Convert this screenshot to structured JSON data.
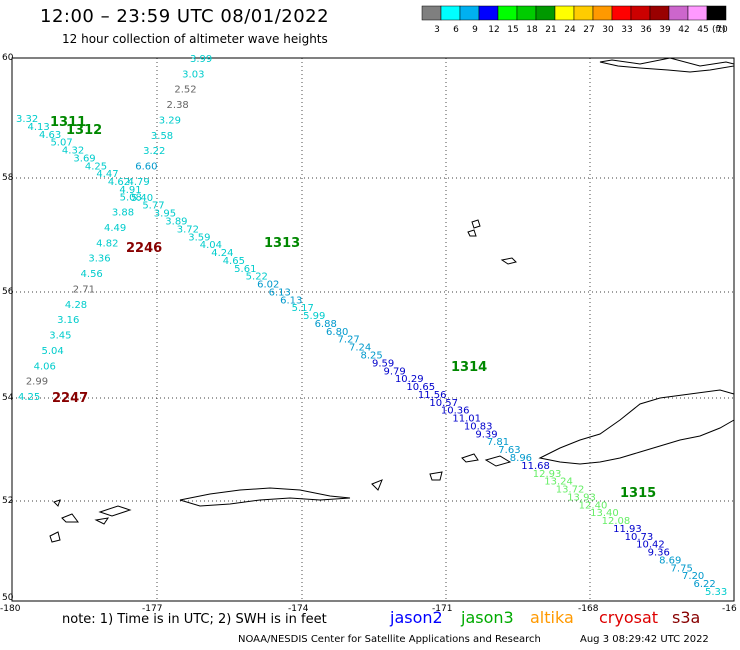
{
  "header": {
    "title": "12:00 – 23:59 UTC 08/01/2022",
    "subtitle": "12 hour collection of altimeter wave heights"
  },
  "colorbar": {
    "labels": [
      "3",
      "6",
      "9",
      "12",
      "15",
      "18",
      "21",
      "24",
      "27",
      "30",
      "33",
      "36",
      "39",
      "42",
      "45",
      "70"
    ],
    "unit": "(ft)",
    "colors": [
      "#7f7f7f",
      "#00ffff",
      "#00b0f0",
      "#0000ff",
      "#00ff00",
      "#00cc00",
      "#009900",
      "#ffff00",
      "#ffcc00",
      "#ff9900",
      "#ff0000",
      "#cc0000",
      "#990000",
      "#cc66cc",
      "#ff99ff",
      "#000000"
    ]
  },
  "axes": {
    "lon_labels": [
      "-180",
      "-177",
      "-174",
      "-171",
      "-168",
      "-16"
    ],
    "lat_labels": [
      "60",
      "58",
      "56",
      "54",
      "52",
      "50"
    ]
  },
  "tracks": {
    "t1312_label": "1312",
    "t1311_label": "1311",
    "t1313_label": "1313",
    "t1314_label": "1314",
    "t1315_label": "1315",
    "t2246_label": "2246",
    "t2247_label": "2247",
    "nw_se": [
      {
        "v": "3.32",
        "c": "#00cccc"
      },
      {
        "v": "4.13",
        "c": "#00cccc"
      },
      {
        "v": "4.63",
        "c": "#00cccc"
      },
      {
        "v": "5.07",
        "c": "#00cccc"
      },
      {
        "v": "4.32",
        "c": "#00cccc"
      },
      {
        "v": "3.69",
        "c": "#00cccc"
      },
      {
        "v": "4.25",
        "c": "#00cccc"
      },
      {
        "v": "4.47",
        "c": "#00cccc"
      },
      {
        "v": "4.62",
        "c": "#00cccc"
      },
      {
        "v": "4.91",
        "c": "#00cccc"
      },
      {
        "v": "5.40",
        "c": "#00cccc"
      },
      {
        "v": "5.77",
        "c": "#00cccc"
      },
      {
        "v": "3.95",
        "c": "#00cccc"
      },
      {
        "v": "3.89",
        "c": "#00cccc"
      },
      {
        "v": "3.72",
        "c": "#00cccc"
      },
      {
        "v": "3.59",
        "c": "#00cccc"
      },
      {
        "v": "4.04",
        "c": "#00cccc"
      },
      {
        "v": "4.24",
        "c": "#00cccc"
      },
      {
        "v": "4.65",
        "c": "#00cccc"
      },
      {
        "v": "5.61",
        "c": "#00cccc"
      },
      {
        "v": "5.22",
        "c": "#00cccc"
      },
      {
        "v": "6.02",
        "c": "#0099cc"
      },
      {
        "v": "6.13",
        "c": "#0099cc"
      },
      {
        "v": "6.13",
        "c": "#0099cc"
      },
      {
        "v": "5.17",
        "c": "#00cccc"
      },
      {
        "v": "5.99",
        "c": "#00cccc"
      },
      {
        "v": "6.88",
        "c": "#0099cc"
      },
      {
        "v": "6.80",
        "c": "#0099cc"
      },
      {
        "v": "7.27",
        "c": "#0099cc"
      },
      {
        "v": "7.24",
        "c": "#0099cc"
      },
      {
        "v": "8.25",
        "c": "#0099cc"
      },
      {
        "v": "9.59",
        "c": "#0000cc"
      },
      {
        "v": "9.79",
        "c": "#0000cc"
      },
      {
        "v": "10.29",
        "c": "#0000cc"
      },
      {
        "v": "10.65",
        "c": "#0000cc"
      },
      {
        "v": "11.56",
        "c": "#0000cc"
      },
      {
        "v": "10.57",
        "c": "#0000cc"
      },
      {
        "v": "10.36",
        "c": "#0000cc"
      },
      {
        "v": "11.01",
        "c": "#0000cc"
      },
      {
        "v": "10.83",
        "c": "#0000cc"
      },
      {
        "v": "9.39",
        "c": "#0000cc"
      },
      {
        "v": "7.81",
        "c": "#0099cc"
      },
      {
        "v": "7.63",
        "c": "#0099cc"
      },
      {
        "v": "8.96",
        "c": "#0099cc"
      },
      {
        "v": "11.68",
        "c": "#0000cc"
      },
      {
        "v": "12.93",
        "c": "#66ee66"
      },
      {
        "v": "13.24",
        "c": "#66ee66"
      },
      {
        "v": "13.72",
        "c": "#66ee66"
      },
      {
        "v": "13.93",
        "c": "#66ee66"
      },
      {
        "v": "12.40",
        "c": "#66ee66"
      },
      {
        "v": "13.40",
        "c": "#66ee66"
      },
      {
        "v": "12.08",
        "c": "#66ee66"
      },
      {
        "v": "11.93",
        "c": "#0000cc"
      },
      {
        "v": "10.73",
        "c": "#0000cc"
      },
      {
        "v": "10.42",
        "c": "#0000cc"
      },
      {
        "v": "9.36",
        "c": "#0000cc"
      },
      {
        "v": "8.69",
        "c": "#0099cc"
      },
      {
        "v": "7.75",
        "c": "#0099cc"
      },
      {
        "v": "7.20",
        "c": "#0099cc"
      },
      {
        "v": "6.22",
        "c": "#0099cc"
      },
      {
        "v": "5.33",
        "c": "#00cccc"
      }
    ],
    "ne_sw": [
      {
        "v": "3.99",
        "c": "#00cccc"
      },
      {
        "v": "3.03",
        "c": "#00cccc"
      },
      {
        "v": "2.52",
        "c": "#666666"
      },
      {
        "v": "2.38",
        "c": "#666666"
      },
      {
        "v": "3.29",
        "c": "#00cccc"
      },
      {
        "v": "3.58",
        "c": "#00cccc"
      },
      {
        "v": "3.22",
        "c": "#00cccc"
      },
      {
        "v": "6.60",
        "c": "#0099cc"
      },
      {
        "v": "4.79",
        "c": "#00cccc"
      },
      {
        "v": "5.08",
        "c": "#00cccc"
      },
      {
        "v": "3.88",
        "c": "#00cccc"
      },
      {
        "v": "4.49",
        "c": "#00cccc"
      },
      {
        "v": "4.82",
        "c": "#00cccc"
      },
      {
        "v": "3.36",
        "c": "#00cccc"
      },
      {
        "v": "4.56",
        "c": "#00cccc"
      },
      {
        "v": "2.71",
        "c": "#666666"
      },
      {
        "v": "4.28",
        "c": "#00cccc"
      },
      {
        "v": "3.16",
        "c": "#00cccc"
      },
      {
        "v": "3.45",
        "c": "#00cccc"
      },
      {
        "v": "5.04",
        "c": "#00cccc"
      },
      {
        "v": "4.06",
        "c": "#00cccc"
      },
      {
        "v": "2.99",
        "c": "#666666"
      },
      {
        "v": "4.25",
        "c": "#00cccc"
      }
    ]
  },
  "footer": {
    "note": "note:  1) Time is in UTC;  2) SWH is in feet",
    "jason2": "jason2",
    "jason3": "jason3",
    "altika": "altika",
    "cryosat": "cryosat",
    "s3a": "s3a",
    "credit": "NOAA/NESDIS Center for Satellite Applications and Research",
    "timestamp": "Aug  3 08:29:42 UTC 2022"
  }
}
